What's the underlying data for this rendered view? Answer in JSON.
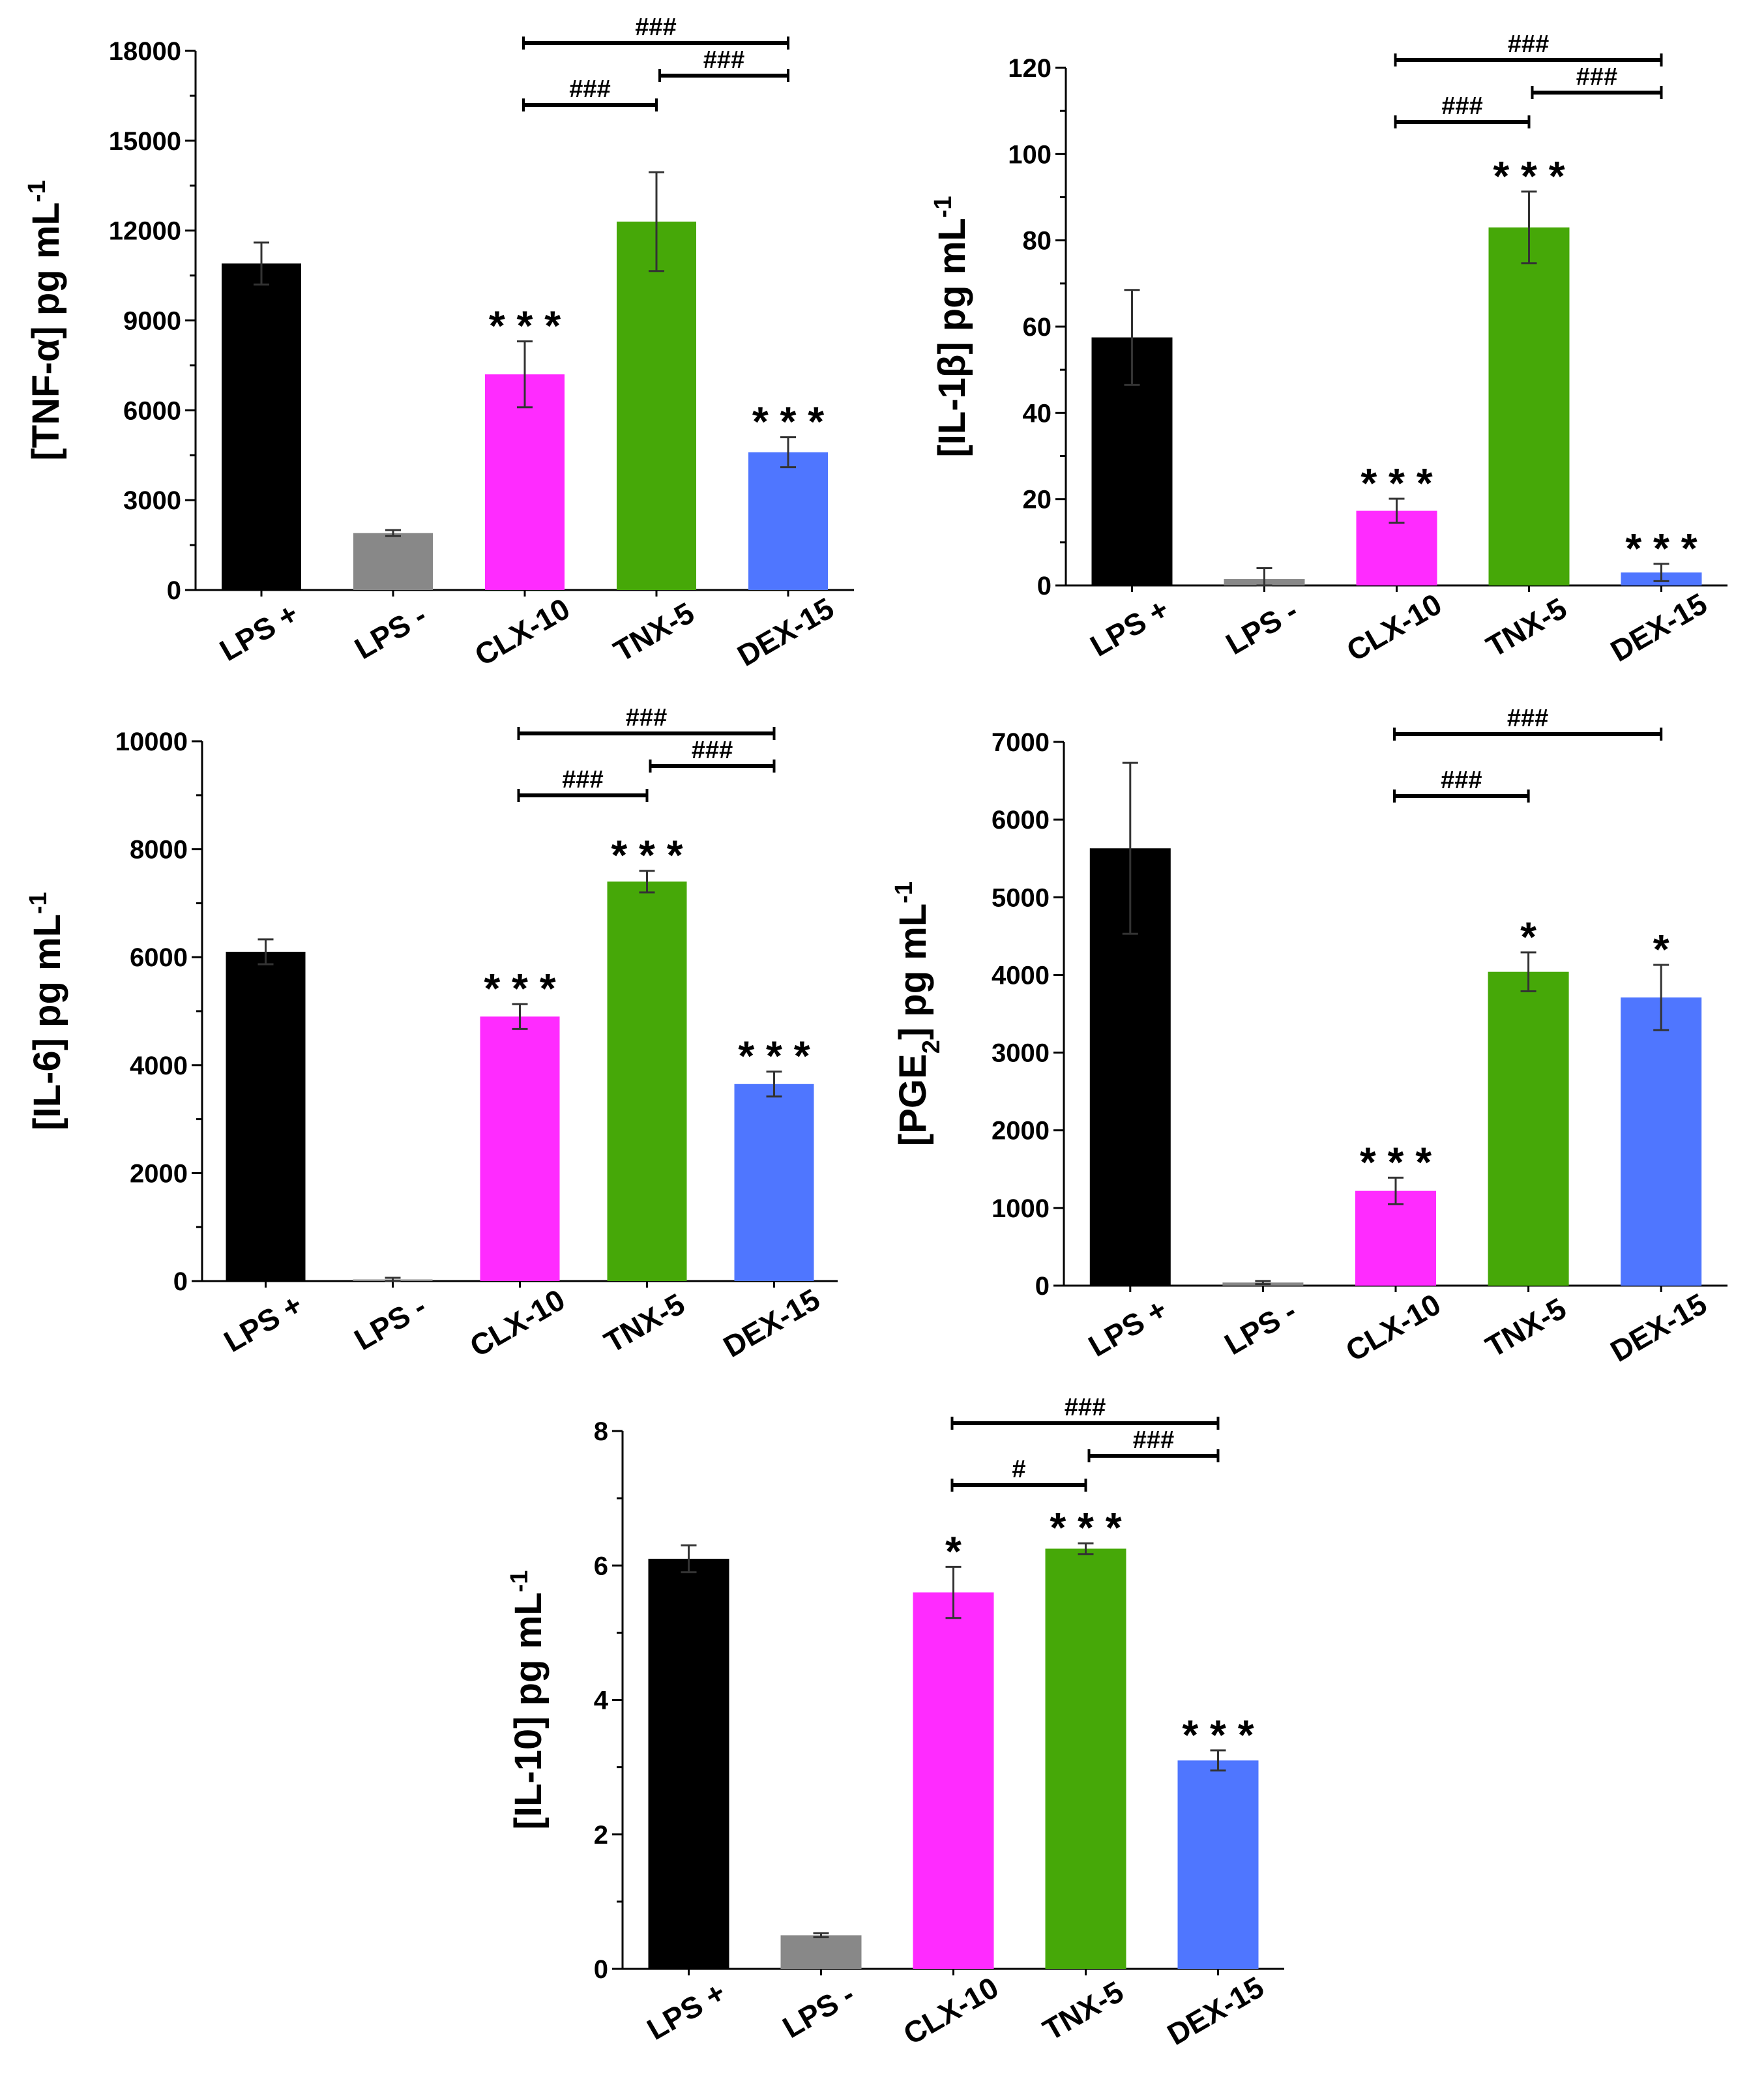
{
  "chart_data": [
    {
      "type": "bar",
      "id": "tnf",
      "ylabel": {
        "pre": "[TNF-α] pg mL",
        "sub": "",
        "post": "",
        "sup": "-1"
      },
      "ylim": [
        0,
        18000
      ],
      "yticks": [
        0,
        3000,
        6000,
        9000,
        12000,
        15000,
        18000
      ],
      "minor_ticks": true,
      "categories": [
        "LPS +",
        "LPS -",
        "CLX-10",
        "TNX-5",
        "DEX-15"
      ],
      "values": [
        10900,
        1900,
        7200,
        12300,
        4600
      ],
      "errors": [
        700,
        100,
        1100,
        1650,
        500
      ],
      "colors": [
        "#000000",
        "#888888",
        "#ff2bff",
        "#46a808",
        "#4f76ff"
      ],
      "significance": [
        "",
        "",
        "***",
        "",
        "***"
      ],
      "brackets": [
        {
          "from": 2,
          "to": 4,
          "label": "###"
        },
        {
          "from": 3,
          "to": 4,
          "label": "###"
        },
        {
          "from": 2,
          "to": 3,
          "label": "###"
        }
      ]
    },
    {
      "type": "bar",
      "id": "il1b",
      "ylabel": {
        "pre": "[IL-1β] pg mL",
        "sub": "",
        "post": "",
        "sup": "-1"
      },
      "ylim": [
        0,
        120
      ],
      "yticks": [
        0,
        20,
        40,
        60,
        80,
        100,
        120
      ],
      "minor_ticks": true,
      "categories": [
        "LPS +",
        "LPS -",
        "CLX-10",
        "TNX-5",
        "DEX-15"
      ],
      "values": [
        57.5,
        1.5,
        17.3,
        83,
        3
      ],
      "errors": [
        11,
        2.5,
        2.8,
        8.3,
        2
      ],
      "colors": [
        "#000000",
        "#888888",
        "#ff2bff",
        "#46a808",
        "#4f76ff"
      ],
      "significance": [
        "",
        "",
        "***",
        "***",
        "***"
      ],
      "brackets": [
        {
          "from": 2,
          "to": 4,
          "label": "###"
        },
        {
          "from": 3,
          "to": 4,
          "label": "###"
        },
        {
          "from": 2,
          "to": 3,
          "label": "###"
        }
      ]
    },
    {
      "type": "bar",
      "id": "il6",
      "ylabel": {
        "pre": "[IL-6] pg mL",
        "sub": "",
        "post": "",
        "sup": "-1"
      },
      "ylim": [
        0,
        10000
      ],
      "yticks": [
        0,
        2000,
        4000,
        6000,
        8000,
        10000
      ],
      "minor_ticks": true,
      "categories": [
        "LPS +",
        "LPS -",
        "CLX-10",
        "TNX-5",
        "DEX-15"
      ],
      "values": [
        6100,
        30,
        4900,
        7400,
        3650
      ],
      "errors": [
        230,
        30,
        230,
        200,
        230
      ],
      "colors": [
        "#000000",
        "#888888",
        "#ff2bff",
        "#46a808",
        "#4f76ff"
      ],
      "significance": [
        "",
        "",
        "***",
        "***",
        "***"
      ],
      "brackets": [
        {
          "from": 2,
          "to": 4,
          "label": "###"
        },
        {
          "from": 3,
          "to": 4,
          "label": "###"
        },
        {
          "from": 2,
          "to": 3,
          "label": "###"
        }
      ]
    },
    {
      "type": "bar",
      "id": "pge2",
      "ylabel": {
        "pre": "[PGE",
        "sub": "2",
        "post": "] pg mL",
        "sup": "-1"
      },
      "ylim": [
        0,
        7000
      ],
      "yticks": [
        0,
        1000,
        2000,
        3000,
        4000,
        5000,
        6000,
        7000
      ],
      "minor_ticks": false,
      "categories": [
        "LPS +",
        "LPS -",
        "CLX-10",
        "TNX-5",
        "DEX-15"
      ],
      "values": [
        5630,
        40,
        1220,
        4040,
        3710
      ],
      "errors": [
        1100,
        20,
        170,
        250,
        420
      ],
      "colors": [
        "#000000",
        "#888888",
        "#ff2bff",
        "#46a808",
        "#4f76ff"
      ],
      "significance": [
        "",
        "",
        "***",
        "*",
        "*"
      ],
      "brackets": [
        {
          "from": 2,
          "to": 4,
          "label": "###"
        },
        {
          "from": 2,
          "to": 3,
          "label": "###"
        }
      ]
    },
    {
      "type": "bar",
      "id": "il10",
      "ylabel": {
        "pre": "[IL-10] pg mL",
        "sub": "",
        "post": "",
        "sup": "-1"
      },
      "ylim": [
        0,
        8
      ],
      "yticks": [
        0,
        2,
        4,
        6,
        8
      ],
      "minor_ticks": true,
      "categories": [
        "LPS +",
        "LPS -",
        "CLX-10",
        "TNX-5",
        "DEX-15"
      ],
      "values": [
        6.1,
        0.5,
        5.6,
        6.25,
        3.1
      ],
      "errors": [
        0.2,
        0.03,
        0.38,
        0.08,
        0.15
      ],
      "colors": [
        "#000000",
        "#888888",
        "#ff2bff",
        "#46a808",
        "#4f76ff"
      ],
      "significance": [
        "",
        "",
        "*",
        "***",
        "***"
      ],
      "brackets": [
        {
          "from": 2,
          "to": 4,
          "label": "###"
        },
        {
          "from": 3,
          "to": 4,
          "label": "###"
        },
        {
          "from": 2,
          "to": 3,
          "label": "#"
        }
      ]
    }
  ]
}
